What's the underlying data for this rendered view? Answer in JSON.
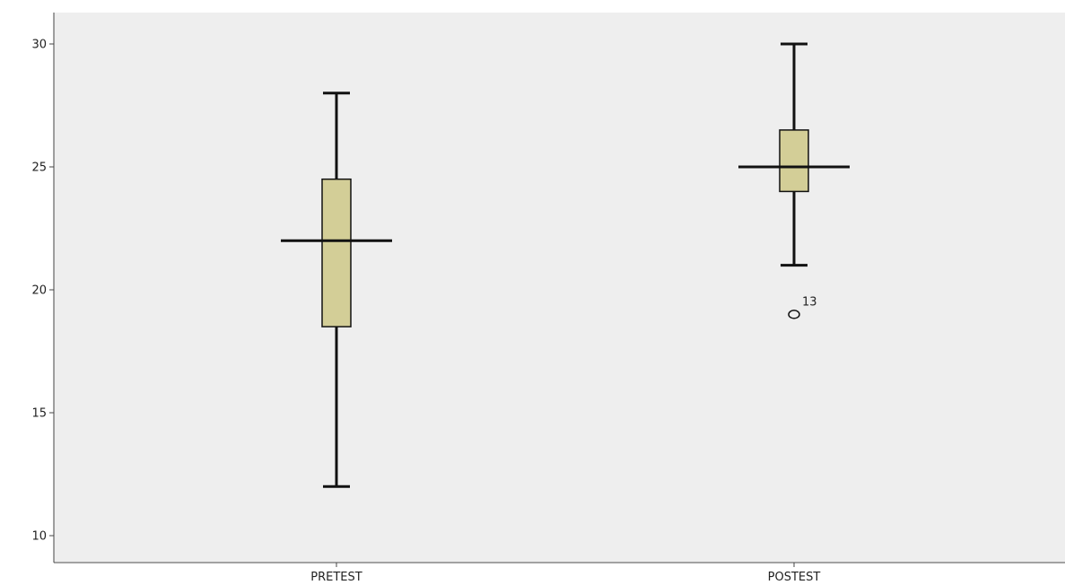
{
  "chart_data": {
    "type": "boxplot",
    "title": "",
    "xlabel": "",
    "ylabel": "",
    "ylim": [
      9,
      31
    ],
    "yticks": [
      10,
      15,
      20,
      25,
      30
    ],
    "grid": false,
    "categories": [
      "PRETEST",
      "POSTEST"
    ],
    "boxes": [
      {
        "category": "PRETEST",
        "min": 12,
        "q1": 18.5,
        "median": 22,
        "q3": 24.5,
        "max": 28,
        "outliers": []
      },
      {
        "category": "POSTEST",
        "min": 21,
        "q1": 24,
        "median": 25,
        "q3": 26.5,
        "max": 30,
        "outliers": [
          {
            "value": 19,
            "label": "13"
          }
        ]
      }
    ],
    "colors": {
      "plot_background": "#eeeeee",
      "box_fill": "#d3ce97",
      "line": "#111111",
      "axis": "#444444"
    }
  }
}
